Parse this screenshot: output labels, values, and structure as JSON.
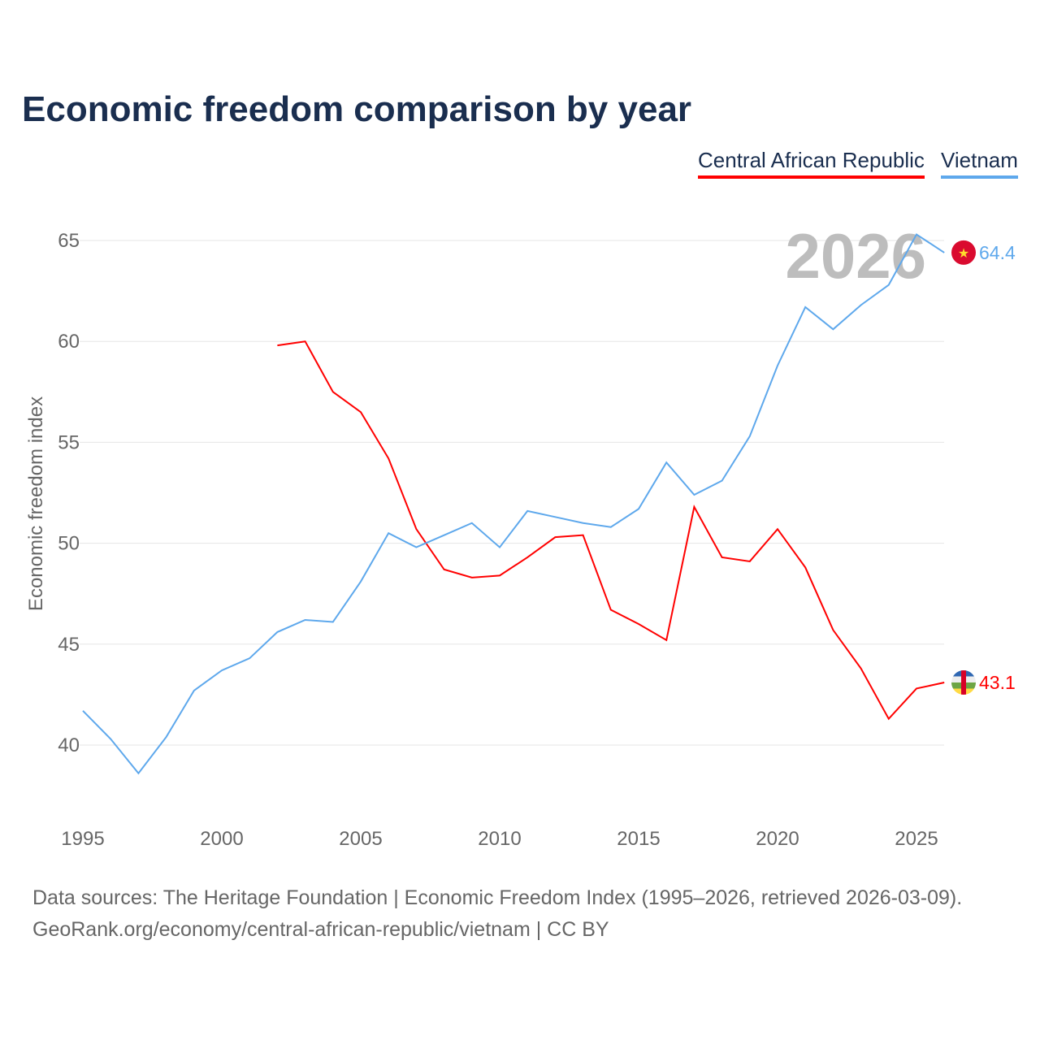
{
  "chart_data": {
    "type": "line",
    "title": "Economic freedom comparison by year",
    "xlabel": "",
    "ylabel": "Economic freedom index",
    "xlim": [
      1995,
      2026
    ],
    "ylim": [
      36.5,
      67
    ],
    "x_ticks": [
      1995,
      2000,
      2005,
      2010,
      2015,
      2020,
      2025
    ],
    "y_ticks": [
      40,
      45,
      50,
      55,
      60,
      65
    ],
    "grid": true,
    "legend_position": "top-right",
    "year_watermark": "2026",
    "series": [
      {
        "name": "Central African Republic",
        "color": "#ff0000",
        "end_label": "43.1",
        "x": [
          2002,
          2003,
          2004,
          2005,
          2006,
          2007,
          2008,
          2009,
          2010,
          2011,
          2012,
          2013,
          2014,
          2015,
          2016,
          2017,
          2018,
          2019,
          2020,
          2021,
          2022,
          2023,
          2024,
          2025,
          2026
        ],
        "values": [
          59.8,
          60.0,
          57.5,
          56.5,
          54.2,
          50.7,
          48.7,
          48.3,
          48.4,
          49.3,
          50.3,
          50.4,
          46.7,
          46.0,
          45.2,
          51.8,
          49.3,
          49.1,
          50.7,
          48.8,
          45.7,
          43.8,
          41.3,
          42.8,
          43.1
        ]
      },
      {
        "name": "Vietnam",
        "color": "#5ea8ec",
        "end_label": "64.4",
        "x": [
          1995,
          1996,
          1997,
          1998,
          1999,
          2000,
          2001,
          2002,
          2003,
          2004,
          2005,
          2006,
          2007,
          2008,
          2009,
          2010,
          2011,
          2012,
          2013,
          2014,
          2015,
          2016,
          2017,
          2018,
          2019,
          2020,
          2021,
          2022,
          2023,
          2024,
          2025,
          2026
        ],
        "values": [
          41.7,
          40.3,
          38.6,
          40.4,
          42.7,
          43.7,
          44.3,
          45.6,
          46.2,
          46.1,
          48.1,
          50.5,
          49.8,
          50.4,
          51.0,
          49.8,
          51.6,
          51.3,
          51.0,
          50.8,
          51.7,
          54.0,
          52.4,
          53.1,
          55.3,
          58.8,
          61.7,
          60.6,
          61.8,
          62.8,
          65.3,
          64.4
        ]
      }
    ]
  },
  "footer": {
    "line1": "Data sources: The Heritage Foundation | Economic Freedom Index (1995–2026, retrieved 2026-03-09).",
    "line2": "GeoRank.org/economy/central-african-republic/vietnam | CC BY"
  }
}
